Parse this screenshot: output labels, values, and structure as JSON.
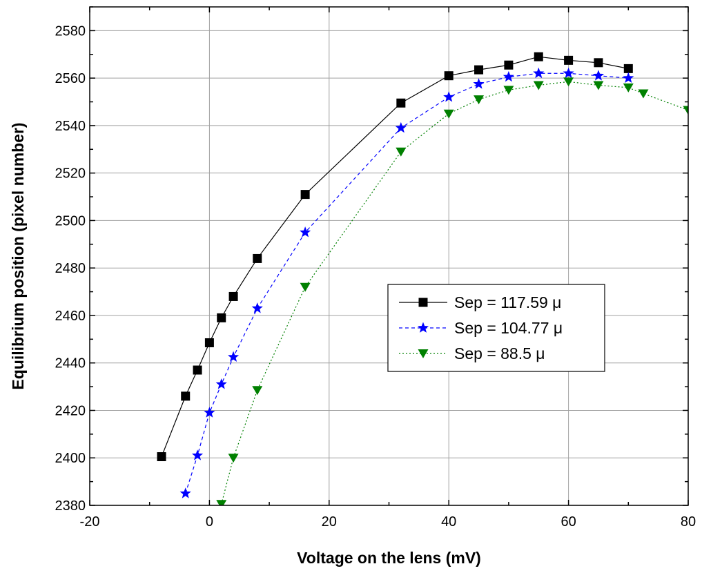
{
  "chart_data": {
    "type": "line",
    "title": "",
    "xlabel": "Voltage on the lens (mV)",
    "ylabel": "Equilibrium position (pixel number)",
    "xlim": [
      -20,
      80
    ],
    "ylim": [
      2380,
      2590
    ],
    "xticks": [
      -20,
      0,
      20,
      40,
      60,
      80
    ],
    "yticks": [
      2380,
      2400,
      2420,
      2440,
      2460,
      2480,
      2500,
      2520,
      2540,
      2560,
      2580
    ],
    "grid": true,
    "legend_position": "center-right",
    "series": [
      {
        "name": "Sep = 117.59 μ",
        "color": "#000000",
        "marker": "square",
        "line_style": "solid",
        "x": [
          -8,
          -4,
          -2,
          0,
          2,
          4,
          8,
          16,
          32,
          40,
          45,
          50,
          55,
          60,
          65,
          70
        ],
        "y": [
          2400.5,
          2426,
          2437,
          2448.5,
          2459,
          2468,
          2484,
          2511,
          2549.5,
          2561,
          2563.5,
          2565.5,
          2569,
          2567.5,
          2566.5,
          2564
        ]
      },
      {
        "name": "Sep = 104.77 μ",
        "color": "#0000ff",
        "marker": "star",
        "line_style": "dashed",
        "x": [
          -4,
          -2,
          0,
          2,
          4,
          8,
          16,
          32,
          40,
          45,
          50,
          55,
          60,
          65,
          70
        ],
        "y": [
          2385,
          2401,
          2419,
          2431,
          2442.5,
          2463,
          2495,
          2539,
          2552,
          2557.5,
          2560.5,
          2562,
          2562,
          2561,
          2560
        ]
      },
      {
        "name": "Sep = 88.5 μ",
        "color": "#008000",
        "marker": "triangle-down",
        "line_style": "dotted",
        "x": [
          2,
          4,
          8,
          16,
          32,
          40,
          45,
          50,
          55,
          60,
          65,
          70,
          72.5,
          80
        ],
        "y": [
          2380.5,
          2400,
          2428.5,
          2472,
          2529,
          2545,
          2551,
          2555,
          2557,
          2558.5,
          2557,
          2556,
          2553.5,
          2546.5
        ]
      }
    ]
  }
}
